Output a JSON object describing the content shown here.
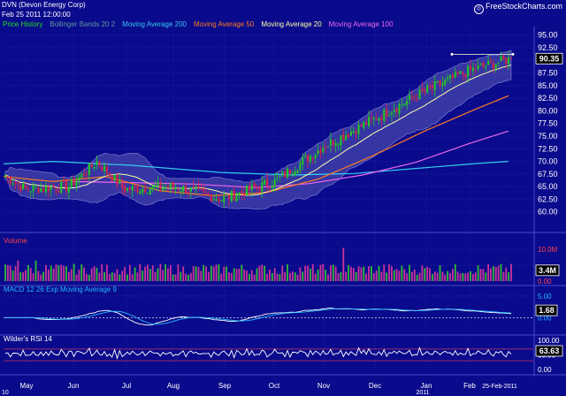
{
  "header": {
    "ticker": "DVN (Devon Energy Corp)",
    "datetime": "Feb 25 2011 12:00:00",
    "brand": "FreeStockCharts.com"
  },
  "legend": [
    {
      "label": "Price History",
      "color": "#22dd22"
    },
    {
      "label": "Bollinger Bands 20 2",
      "color": "#5a9a9a"
    },
    {
      "label": "Moving Average 200",
      "color": "#33ccee"
    },
    {
      "label": "Moving Average 50",
      "color": "#ff7a22"
    },
    {
      "label": "Moving Average 20",
      "color": "#ffffaa"
    },
    {
      "label": "Moving Average 100",
      "color": "#ee66ee"
    }
  ],
  "panels": {
    "volume": {
      "title": "Volume",
      "color": "#ff4444",
      "last_value": "3.4M"
    },
    "macd": {
      "title": "MACD 12 26  Exp Moving Average 9",
      "color": "#22bbff",
      "last_value": "1.68"
    },
    "rsi": {
      "title": "Wilder's RSI 14",
      "color": "#ffffff",
      "last_value": "63.63"
    }
  },
  "colors": {
    "background": "#0a0a8c",
    "grid": "#2f2fb2",
    "up_candle": "#22cc22",
    "down_candle": "#dd2244",
    "volume_bar": "#cc3399",
    "volume_bar_up": "#33bb33",
    "band_fill": "#5a5ab8"
  },
  "chart_data": [
    {
      "type": "candlestick",
      "panel": "price",
      "x_labels": [
        "May",
        "Jun",
        "Jul",
        "Aug",
        "Sep",
        "Oct",
        "Nov",
        "Dec",
        "Jan",
        "Feb"
      ],
      "x_year_labels": [
        "10",
        "2011"
      ],
      "end_date_label": "25-Feb-2011",
      "y_ticks": [
        60.0,
        62.5,
        65.0,
        67.5,
        70.0,
        72.5,
        75.0,
        77.5,
        80.0,
        82.5,
        85.0,
        87.5,
        90.0,
        92.5,
        95.0
      ],
      "ylim": [
        57.5,
        96.0
      ],
      "last_price": "90.35",
      "close_anchors": [
        {
          "month": "May",
          "value": 67.5
        },
        {
          "month": "May (mid)",
          "value": 64.5
        },
        {
          "month": "Jun",
          "value": 65.0
        },
        {
          "month": "Jun (late)",
          "value": 70.0
        },
        {
          "month": "Jul",
          "value": 64.5
        },
        {
          "month": "Aug",
          "value": 65.0
        },
        {
          "month": "Sep",
          "value": 62.5
        },
        {
          "month": "Oct",
          "value": 66.0
        },
        {
          "month": "Nov",
          "value": 73.0
        },
        {
          "month": "Dec",
          "value": 78.5
        },
        {
          "month": "Jan",
          "value": 84.0
        },
        {
          "month": "Feb",
          "value": 88.0
        },
        {
          "month": "25-Feb-2011",
          "value": 90.35
        }
      ],
      "moving_average_200_end": 70.0,
      "moving_average_100_end": 76.0,
      "moving_average_50_end": 83.0
    },
    {
      "type": "bar",
      "panel": "volume",
      "y_ticks": [
        "10.0M",
        "5.0M",
        "0.00"
      ],
      "ylim": [
        0,
        12
      ],
      "last_value_millions": 3.4
    },
    {
      "type": "line",
      "panel": "macd",
      "y_ticks": [
        "5.00",
        "0.00"
      ],
      "ylim": [
        -3,
        6
      ],
      "last_value": 1.68
    },
    {
      "type": "line",
      "panel": "rsi",
      "y_ticks": [
        "100.00",
        "50.00",
        "0.00"
      ],
      "ylim": [
        0,
        100
      ],
      "reference_lines": [
        30,
        70
      ],
      "last_value": 63.63
    }
  ]
}
